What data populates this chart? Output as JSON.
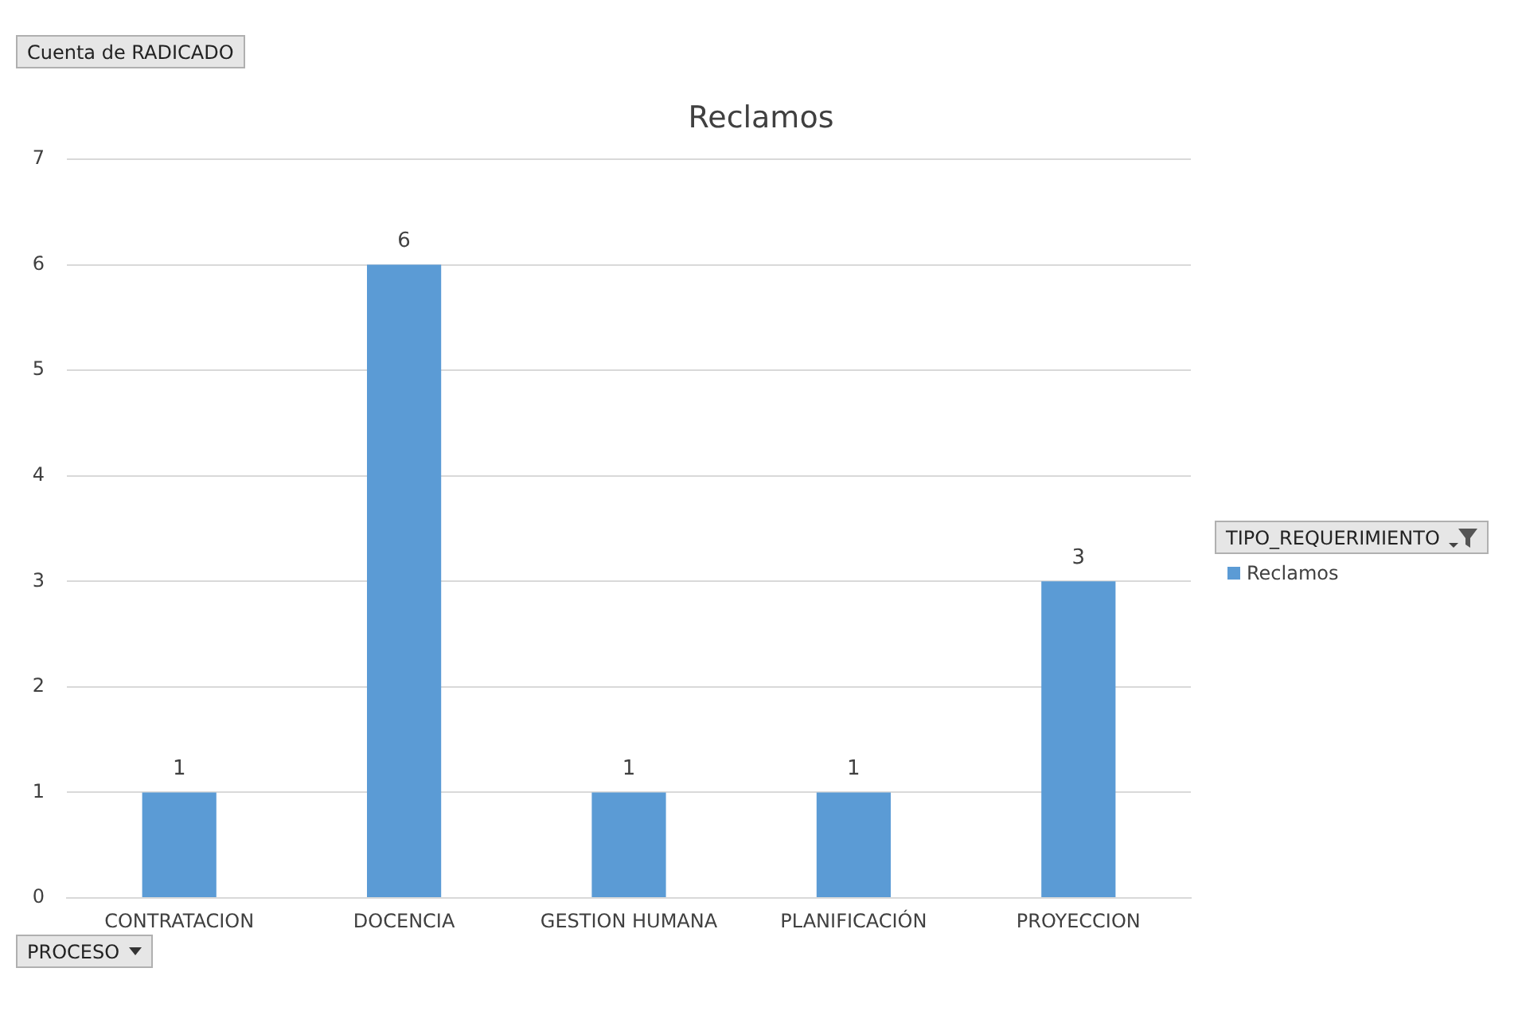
{
  "chart_data": {
    "type": "bar",
    "title": "Reclamos",
    "ylabel": "Cuenta de RADICADO",
    "xlabel": "PROCESO",
    "legend_title": "TIPO_REQUERIMIENTO",
    "categories": [
      "CONTRATACION",
      "DOCENCIA",
      "GESTION HUMANA",
      "PLANIFICACIÓN",
      "PROYECCION"
    ],
    "series": [
      {
        "name": "Reclamos",
        "color": "#5b9bd5",
        "values": [
          1,
          6,
          1,
          1,
          3
        ]
      }
    ],
    "ylim": [
      0,
      7
    ],
    "yticks": [
      0,
      1,
      2,
      3,
      4,
      5,
      6,
      7
    ],
    "grid": "y",
    "legend": "right",
    "data_labels": true
  }
}
